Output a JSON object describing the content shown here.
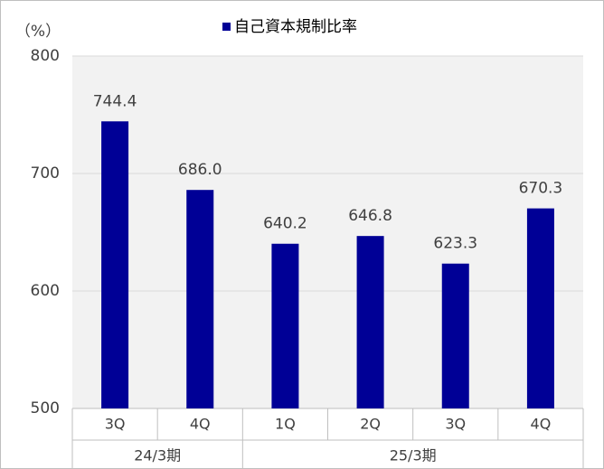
{
  "chart_data": {
    "type": "bar",
    "unit_label": "（%）",
    "groups": [
      {
        "name": "24/3期",
        "categories": [
          "3Q",
          "4Q"
        ]
      },
      {
        "name": "25/3期",
        "categories": [
          "1Q",
          "2Q",
          "3Q",
          "4Q"
        ]
      }
    ],
    "series": [
      {
        "name": "自己資本規制比率",
        "color": "#000096",
        "values": [
          744.4,
          686.0,
          640.2,
          646.8,
          623.3,
          670.3
        ],
        "value_labels": [
          "744.4",
          "686.0",
          "640.2",
          "646.8",
          "623.3",
          "670.3"
        ]
      }
    ],
    "ylim": [
      500,
      800
    ],
    "yticks": [
      500,
      600,
      700,
      800
    ],
    "grid": true,
    "plot_background": "#f2f2f2"
  }
}
